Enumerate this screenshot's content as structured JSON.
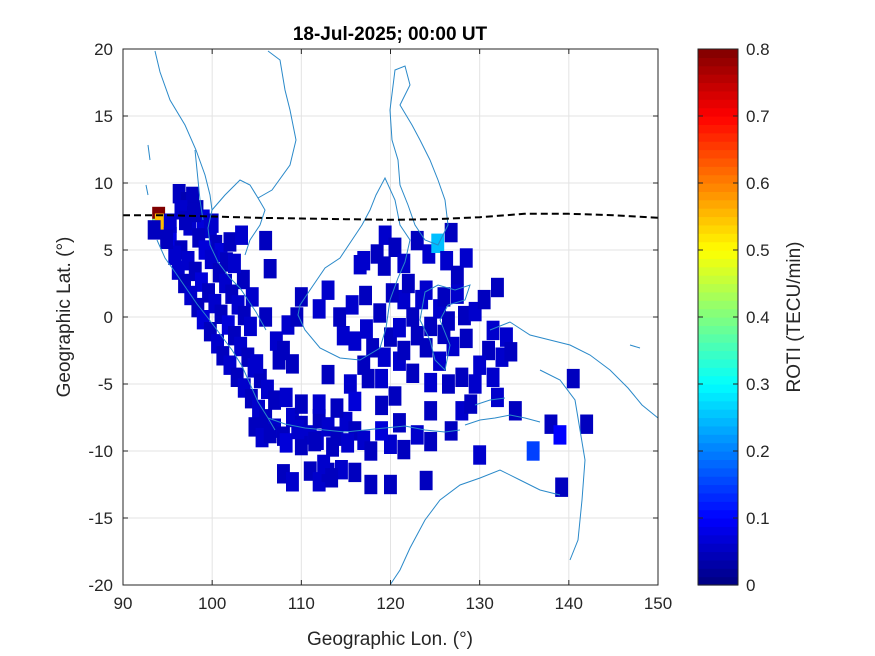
{
  "chart_data": {
    "type": "heatmap",
    "title": "18-Jul-2025; 00:00 UT",
    "xlabel": "Geographic Lon. (°)",
    "ylabel": "Geographic Lat. (°)",
    "xlim": [
      90,
      150
    ],
    "ylim": [
      -20,
      20
    ],
    "xticks": [
      "90",
      "100",
      "110",
      "120",
      "130",
      "140",
      "150"
    ],
    "yticks": [
      "20",
      "15",
      "10",
      "5",
      "0",
      "-5",
      "-10",
      "-15",
      "-20"
    ],
    "grid": true,
    "colorbar": {
      "label": "ROTI (TECU/min)",
      "range": [
        0,
        0.8
      ],
      "ticks": [
        "0",
        "0.1",
        "0.2",
        "0.3",
        "0.4",
        "0.5",
        "0.6",
        "0.7",
        "0.8"
      ]
    },
    "magnetic_equator": [
      [
        90,
        7.6
      ],
      [
        95,
        7.6
      ],
      [
        100,
        7.5
      ],
      [
        105,
        7.4
      ],
      [
        110,
        7.35
      ],
      [
        115,
        7.3
      ],
      [
        120,
        7.25
      ],
      [
        125,
        7.3
      ],
      [
        130,
        7.45
      ],
      [
        133,
        7.6
      ],
      [
        135,
        7.7
      ],
      [
        140,
        7.7
      ],
      [
        145,
        7.6
      ],
      [
        150,
        7.4
      ]
    ],
    "points": [
      [
        94.0,
        7.5,
        0.8
      ],
      [
        94.0,
        6.6,
        0.4
      ],
      [
        94.3,
        7.0,
        0.55
      ],
      [
        93.5,
        6.5,
        0.05
      ],
      [
        95.3,
        6.0,
        0.08
      ],
      [
        96.3,
        9.2,
        0.05
      ],
      [
        97.2,
        8.6,
        0.04
      ],
      [
        97.8,
        9.0,
        0.05
      ],
      [
        96.5,
        8.0,
        0.06
      ],
      [
        98.3,
        8.0,
        0.05
      ],
      [
        99.0,
        7.3,
        0.07
      ],
      [
        99.8,
        6.6,
        0.06
      ],
      [
        100.4,
        5.4,
        0.05
      ],
      [
        101.0,
        4.8,
        0.07
      ],
      [
        101.6,
        4.1,
        0.05
      ],
      [
        97.5,
        6.8,
        0.06
      ],
      [
        98.5,
        5.9,
        0.05
      ],
      [
        99.2,
        5.0,
        0.07
      ],
      [
        99.9,
        4.3,
        0.06
      ],
      [
        100.8,
        3.3,
        0.05
      ],
      [
        101.5,
        2.5,
        0.06
      ],
      [
        102.2,
        1.7,
        0.05
      ],
      [
        102.9,
        0.9,
        0.06
      ],
      [
        103.6,
        0.1,
        0.05
      ],
      [
        104.3,
        -0.7,
        0.06
      ],
      [
        96.5,
        5.0,
        0.05
      ],
      [
        97.3,
        4.2,
        0.06
      ],
      [
        98.1,
        3.4,
        0.05
      ],
      [
        98.8,
        2.6,
        0.07
      ],
      [
        99.6,
        1.8,
        0.05
      ],
      [
        100.3,
        1.0,
        0.06
      ],
      [
        101.0,
        0.2,
        0.05
      ],
      [
        101.8,
        -0.6,
        0.07
      ],
      [
        102.5,
        -1.4,
        0.05
      ],
      [
        103.2,
        -2.2,
        0.06
      ],
      [
        104.0,
        -3.0,
        0.05
      ],
      [
        104.7,
        -3.8,
        0.06
      ],
      [
        105.4,
        -4.6,
        0.05
      ],
      [
        106.2,
        -5.4,
        0.06
      ],
      [
        107.0,
        -6.2,
        0.05
      ],
      [
        96.2,
        3.5,
        0.06
      ],
      [
        96.9,
        2.5,
        0.05
      ],
      [
        97.6,
        1.6,
        0.06
      ],
      [
        98.4,
        0.7,
        0.05
      ],
      [
        99.0,
        -0.2,
        0.07
      ],
      [
        99.8,
        -1.1,
        0.05
      ],
      [
        100.6,
        -2.0,
        0.06
      ],
      [
        101.2,
        -2.9,
        0.05
      ],
      [
        102.0,
        -3.6,
        0.06
      ],
      [
        102.8,
        -4.5,
        0.05
      ],
      [
        103.6,
        -5.3,
        0.06
      ],
      [
        104.4,
        -6.1,
        0.05
      ],
      [
        105.2,
        -6.9,
        0.06
      ],
      [
        106.0,
        -7.6,
        0.05
      ],
      [
        107.0,
        -8.3,
        0.06
      ],
      [
        108.0,
        -8.9,
        0.05
      ],
      [
        109.0,
        -7.5,
        0.06
      ],
      [
        110.0,
        -8.1,
        0.05
      ],
      [
        111.0,
        -8.8,
        0.06
      ],
      [
        112.0,
        -7.6,
        0.05
      ],
      [
        113.0,
        -8.2,
        0.06
      ],
      [
        114.0,
        -8.9,
        0.05
      ],
      [
        115.0,
        -7.8,
        0.06
      ],
      [
        116.0,
        -8.5,
        0.05
      ],
      [
        117.0,
        -9.2,
        0.06
      ],
      [
        104.8,
        -8.2,
        0.05
      ],
      [
        105.6,
        -9.0,
        0.06
      ],
      [
        106.5,
        -8.7,
        0.05
      ],
      [
        108.3,
        -9.4,
        0.07
      ],
      [
        110.0,
        -9.6,
        0.05
      ],
      [
        111.8,
        -9.2,
        0.06
      ],
      [
        113.5,
        -9.7,
        0.05
      ],
      [
        115.2,
        -9.4,
        0.06
      ],
      [
        117.8,
        -10.0,
        0.05
      ],
      [
        120.0,
        -9.5,
        0.06
      ],
      [
        121.5,
        -9.9,
        0.05
      ],
      [
        123.0,
        -8.8,
        0.06
      ],
      [
        124.5,
        -9.3,
        0.05
      ],
      [
        119.0,
        -8.5,
        0.07
      ],
      [
        121.0,
        -7.9,
        0.05
      ],
      [
        105.0,
        -3.5,
        0.06
      ],
      [
        106.0,
        0.0,
        0.05
      ],
      [
        104.5,
        1.5,
        0.06
      ],
      [
        103.5,
        2.8,
        0.05
      ],
      [
        102.5,
        4.0,
        0.06
      ],
      [
        102.0,
        5.6,
        0.05
      ],
      [
        100.0,
        7.0,
        0.06
      ],
      [
        98.0,
        7.8,
        0.05
      ],
      [
        103.3,
        6.1,
        0.06
      ],
      [
        106.5,
        3.6,
        0.05
      ],
      [
        107.2,
        -1.8,
        0.06
      ],
      [
        107.5,
        -3.2,
        0.05
      ],
      [
        109.0,
        -3.5,
        0.05
      ],
      [
        108.3,
        -6.0,
        0.06
      ],
      [
        110.0,
        -6.5,
        0.05
      ],
      [
        113.0,
        -4.3,
        0.05
      ],
      [
        115.5,
        -5.0,
        0.06
      ],
      [
        119.0,
        -6.6,
        0.05
      ],
      [
        120.5,
        -5.9,
        0.05
      ],
      [
        116.0,
        -6.3,
        0.07
      ],
      [
        114.0,
        -6.8,
        0.05
      ],
      [
        112.0,
        -6.5,
        0.06
      ],
      [
        117.5,
        -4.6,
        0.05
      ],
      [
        114.7,
        -1.4,
        0.06
      ],
      [
        114.3,
        0.0,
        0.05
      ],
      [
        115.7,
        0.9,
        0.06
      ],
      [
        117.2,
        1.6,
        0.05
      ],
      [
        116.6,
        3.9,
        0.06
      ],
      [
        118.5,
        4.7,
        0.05
      ],
      [
        119.4,
        6.1,
        0.06
      ],
      [
        120.5,
        5.2,
        0.05
      ],
      [
        121.5,
        4.0,
        0.06
      ],
      [
        123.0,
        5.7,
        0.05
      ],
      [
        124.3,
        4.7,
        0.06
      ],
      [
        125.3,
        5.5,
        0.25
      ],
      [
        126.8,
        6.3,
        0.05
      ],
      [
        126.3,
        4.2,
        0.06
      ],
      [
        127.5,
        3.1,
        0.05
      ],
      [
        128.5,
        4.4,
        0.06
      ],
      [
        119.3,
        3.8,
        0.05
      ],
      [
        121.5,
        1.3,
        0.06
      ],
      [
        122.5,
        0.0,
        0.05
      ],
      [
        123.5,
        1.3,
        0.06
      ],
      [
        124.5,
        -0.7,
        0.05
      ],
      [
        125.5,
        0.6,
        0.06
      ],
      [
        126.5,
        -0.3,
        0.05
      ],
      [
        127.5,
        1.7,
        0.06
      ],
      [
        128.3,
        0.1,
        0.05
      ],
      [
        127.0,
        -2.2,
        0.06
      ],
      [
        128.5,
        -1.6,
        0.05
      ],
      [
        129.5,
        0.4,
        0.06
      ],
      [
        130.5,
        1.3,
        0.05
      ],
      [
        131.5,
        -1.0,
        0.06
      ],
      [
        132.0,
        2.2,
        0.05
      ],
      [
        133.0,
        -1.5,
        0.06
      ],
      [
        131.0,
        -2.5,
        0.05
      ],
      [
        132.5,
        -3.0,
        0.06
      ],
      [
        133.5,
        -2.6,
        0.05
      ],
      [
        130.0,
        -3.6,
        0.06
      ],
      [
        128.0,
        -4.5,
        0.05
      ],
      [
        129.5,
        -5.0,
        0.06
      ],
      [
        126.5,
        -5.0,
        0.05
      ],
      [
        124.5,
        -4.9,
        0.06
      ],
      [
        122.5,
        -4.2,
        0.05
      ],
      [
        121.0,
        -3.3,
        0.06
      ],
      [
        120.0,
        -1.5,
        0.05
      ],
      [
        119.3,
        -3.0,
        0.06
      ],
      [
        118.0,
        -2.3,
        0.05
      ],
      [
        117.3,
        -0.9,
        0.06
      ],
      [
        118.8,
        0.3,
        0.05
      ],
      [
        121.0,
        -0.8,
        0.06
      ],
      [
        124.0,
        -2.3,
        0.05
      ],
      [
        125.5,
        -3.3,
        0.06
      ],
      [
        126.0,
        -1.3,
        0.05
      ],
      [
        123.0,
        -1.4,
        0.05
      ],
      [
        120.2,
        1.8,
        0.05
      ],
      [
        116.0,
        -1.8,
        0.06
      ],
      [
        117.0,
        -3.6,
        0.05
      ],
      [
        119.0,
        -4.6,
        0.06
      ],
      [
        112.0,
        0.6,
        0.06
      ],
      [
        110.0,
        1.5,
        0.05
      ],
      [
        108.5,
        -0.6,
        0.06
      ],
      [
        109.5,
        0.0,
        0.05
      ],
      [
        113.0,
        2.0,
        0.06
      ],
      [
        108.0,
        -2.5,
        0.05
      ],
      [
        122.0,
        2.5,
        0.05
      ],
      [
        124.0,
        2.0,
        0.06
      ],
      [
        126.0,
        1.5,
        0.05
      ],
      [
        121.5,
        -2.5,
        0.05
      ],
      [
        117.0,
        4.2,
        0.06
      ],
      [
        124.5,
        -7.0,
        0.05
      ],
      [
        128.0,
        -7.0,
        0.06
      ],
      [
        126.8,
        -8.5,
        0.05
      ],
      [
        131.5,
        -4.5,
        0.06
      ],
      [
        129.0,
        -6.5,
        0.05
      ],
      [
        132.0,
        -6.0,
        0.06
      ],
      [
        134.0,
        -7.0,
        0.05
      ],
      [
        130.0,
        -10.3,
        0.06
      ],
      [
        136.0,
        -10.0,
        0.15
      ],
      [
        138.0,
        -8.0,
        0.05
      ],
      [
        139.0,
        -8.8,
        0.1
      ],
      [
        140.5,
        -4.6,
        0.05
      ],
      [
        142.0,
        -8.0,
        0.05
      ],
      [
        139.2,
        -12.7,
        0.05
      ],
      [
        124.0,
        -12.2,
        0.05
      ],
      [
        108.0,
        -11.7,
        0.05
      ],
      [
        109.0,
        -12.3,
        0.06
      ],
      [
        111.0,
        -11.5,
        0.05
      ],
      [
        112.0,
        -12.3,
        0.06
      ],
      [
        113.0,
        -11.6,
        0.05
      ],
      [
        114.5,
        -11.4,
        0.06
      ],
      [
        116.0,
        -11.6,
        0.05
      ],
      [
        117.8,
        -12.5,
        0.05
      ],
      [
        120.0,
        -12.5,
        0.05
      ],
      [
        112.5,
        -11.0,
        0.06
      ],
      [
        113.4,
        -12.0,
        0.05
      ],
      [
        106.0,
        5.7,
        0.05
      ],
      [
        109.6,
        -8.4,
        0.06
      ],
      [
        111.5,
        -9.3,
        0.05
      ],
      [
        95.3,
        7.0,
        0.06
      ],
      [
        97.0,
        7.2,
        0.05
      ],
      [
        95.8,
        4.6,
        0.06
      ],
      [
        94.9,
        5.8,
        0.05
      ]
    ]
  }
}
